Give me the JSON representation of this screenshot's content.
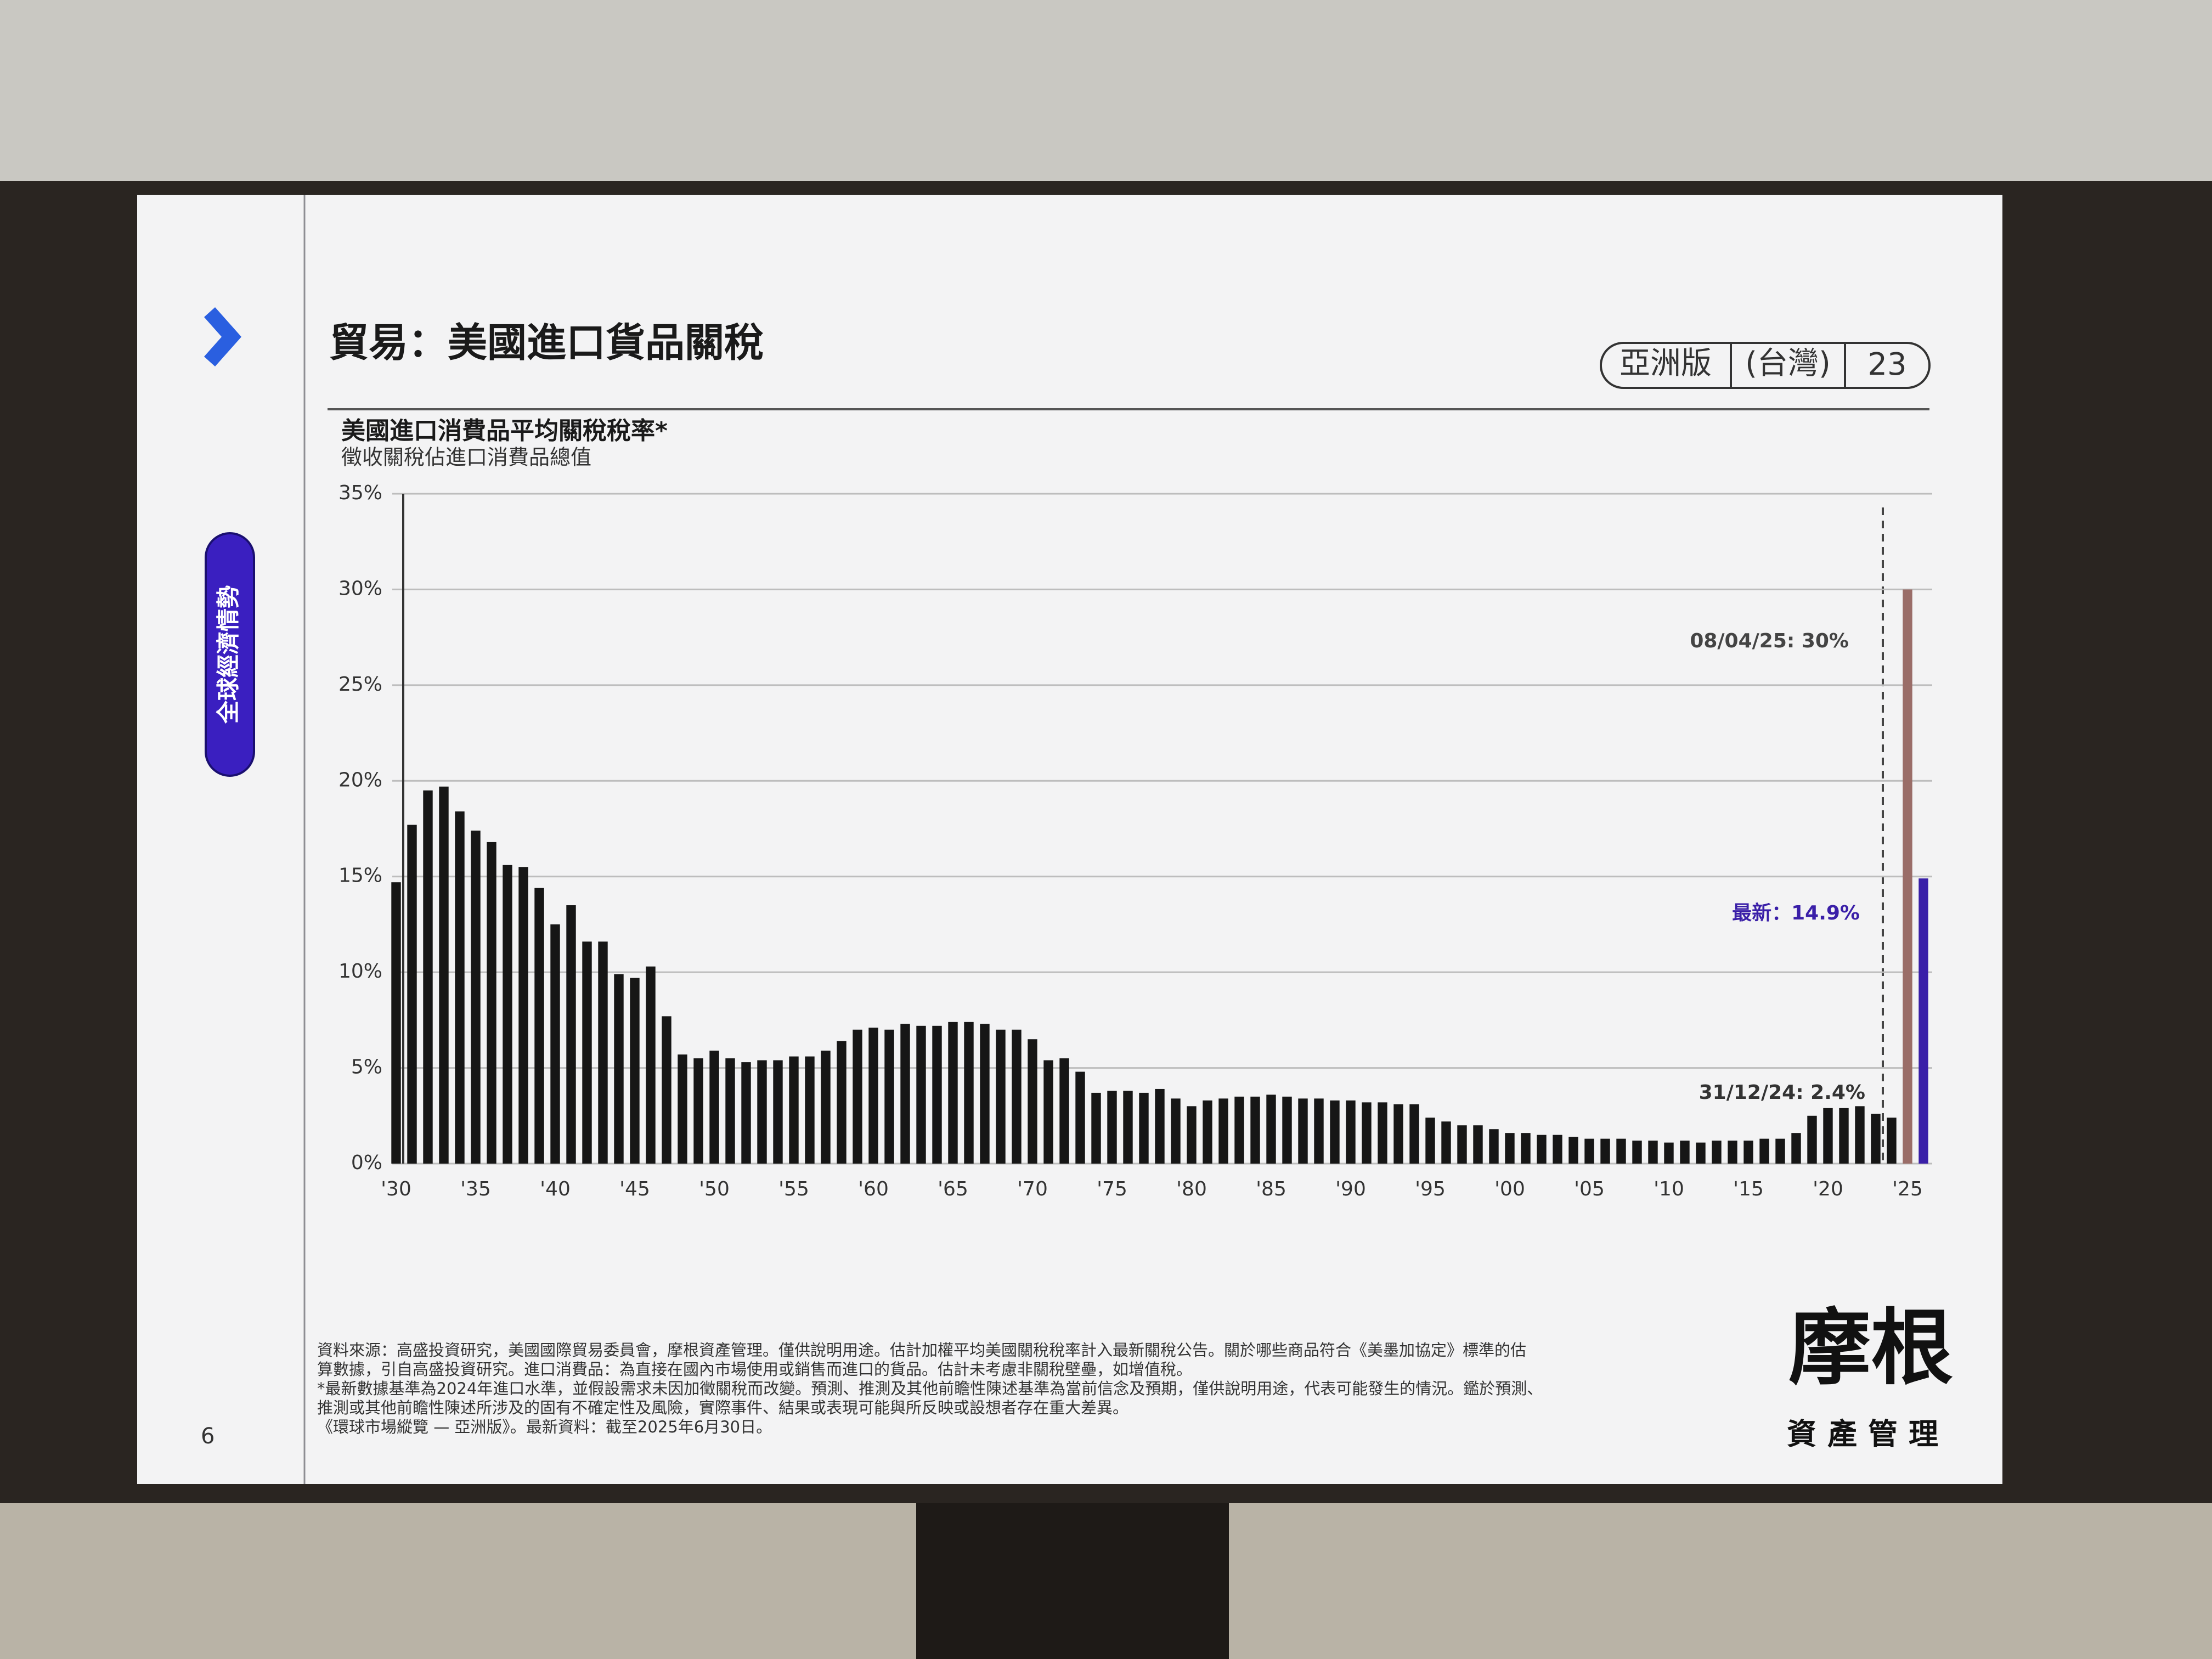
{
  "header": {
    "title": "貿易：美國進口貨品關稅",
    "edition": "亞洲版",
    "region": "(台灣)",
    "page_ref": "23"
  },
  "side_tab": "全球經濟情勢",
  "chart_data": {
    "type": "bar",
    "title": "美國進口消費品平均關稅稅率*",
    "subtitle": "徵收關稅佔進口消費品總值",
    "categories": [
      "'30",
      null,
      null,
      null,
      null,
      "'35",
      null,
      null,
      null,
      null,
      "'40",
      null,
      null,
      null,
      null,
      "'45",
      null,
      null,
      null,
      null,
      "'50",
      null,
      null,
      null,
      null,
      "'55",
      null,
      null,
      null,
      null,
      "'60",
      null,
      null,
      null,
      null,
      "'65",
      null,
      null,
      null,
      null,
      "'70",
      null,
      null,
      null,
      null,
      "'75",
      null,
      null,
      null,
      null,
      "'80",
      null,
      null,
      null,
      null,
      "'85",
      null,
      null,
      null,
      null,
      "'90",
      null,
      null,
      null,
      null,
      "'95",
      null,
      null,
      null,
      null,
      "'00",
      null,
      null,
      null,
      null,
      "'05",
      null,
      null,
      null,
      null,
      "'10",
      null,
      null,
      null,
      null,
      "'15",
      null,
      null,
      null,
      null,
      "'20",
      null,
      null,
      null,
      null,
      "'25",
      null
    ],
    "values": [
      14.7,
      17.7,
      19.5,
      19.7,
      18.4,
      17.4,
      16.8,
      15.6,
      15.5,
      14.4,
      12.5,
      13.5,
      11.6,
      11.6,
      9.9,
      9.7,
      10.3,
      7.7,
      5.7,
      5.5,
      5.9,
      5.5,
      5.3,
      5.4,
      5.4,
      5.6,
      5.6,
      5.9,
      6.4,
      7.0,
      7.1,
      7.0,
      7.3,
      7.2,
      7.2,
      7.4,
      7.4,
      7.3,
      7.0,
      7.0,
      6.5,
      5.4,
      5.5,
      4.8,
      3.7,
      3.8,
      3.8,
      3.7,
      3.9,
      3.4,
      3.0,
      3.3,
      3.4,
      3.5,
      3.5,
      3.6,
      3.5,
      3.4,
      3.4,
      3.3,
      3.3,
      3.2,
      3.2,
      3.1,
      3.1,
      2.4,
      2.2,
      2.0,
      2.0,
      1.8,
      1.6,
      1.6,
      1.5,
      1.5,
      1.4,
      1.3,
      1.3,
      1.3,
      1.2,
      1.2,
      1.1,
      1.2,
      1.1,
      1.2,
      1.2,
      1.2,
      1.3,
      1.3,
      1.6,
      2.5,
      2.9,
      2.9,
      3.0,
      2.6,
      2.4,
      30,
      14.9
    ],
    "colors": [
      "#161616",
      "#161616",
      "#161616",
      "#161616",
      "#161616",
      "#161616",
      "#161616",
      "#161616",
      "#161616",
      "#161616",
      "#161616",
      "#161616",
      "#161616",
      "#161616",
      "#161616",
      "#161616",
      "#161616",
      "#161616",
      "#161616",
      "#161616",
      "#161616",
      "#161616",
      "#161616",
      "#161616",
      "#161616",
      "#161616",
      "#161616",
      "#161616",
      "#161616",
      "#161616",
      "#161616",
      "#161616",
      "#161616",
      "#161616",
      "#161616",
      "#161616",
      "#161616",
      "#161616",
      "#161616",
      "#161616",
      "#161616",
      "#161616",
      "#161616",
      "#161616",
      "#161616",
      "#161616",
      "#161616",
      "#161616",
      "#161616",
      "#161616",
      "#161616",
      "#161616",
      "#161616",
      "#161616",
      "#161616",
      "#161616",
      "#161616",
      "#161616",
      "#161616",
      "#161616",
      "#161616",
      "#161616",
      "#161616",
      "#161616",
      "#161616",
      "#161616",
      "#161616",
      "#161616",
      "#161616",
      "#161616",
      "#161616",
      "#161616",
      "#161616",
      "#161616",
      "#161616",
      "#161616",
      "#161616",
      "#161616",
      "#161616",
      "#161616",
      "#161616",
      "#161616",
      "#161616",
      "#161616",
      "#161616",
      "#161616",
      "#161616",
      "#161616",
      "#161616",
      "#161616",
      "#161616",
      "#161616",
      "#161616",
      "#161616",
      "#161616",
      "#9a6d68",
      "#3a1fa8"
    ],
    "ylim": [
      0,
      35
    ],
    "yticks": [
      {
        "value": 0,
        "label": "0%"
      },
      {
        "value": 5,
        "label": "5%"
      },
      {
        "value": 10,
        "label": "10%"
      },
      {
        "value": 15,
        "label": "15%"
      },
      {
        "value": 20,
        "label": "20%"
      },
      {
        "value": 25,
        "label": "25%"
      },
      {
        "value": 30,
        "label": "30%"
      },
      {
        "value": 35,
        "label": "35%"
      }
    ],
    "grid": true,
    "annotations": [
      "08/04/25: 30%",
      "最新：14.9%",
      "31/12/24: 2.4%"
    ]
  },
  "footnotes": [
    "資料來源：高盛投資研究，美國國際貿易委員會，摩根資產管理。僅供說明用途。估計加權平均美國關稅稅率計入最新關稅公告。關於哪些商品符合《美墨加協定》標準的估",
    "算數據，引自高盛投資研究。進口消費品：為直接在國內市場使用或銷售而進口的貨品。估計未考慮非關稅壁壘，如增值稅。",
    "*最新數據基準為2024年進口水準，並假設需求未因加徵關稅而改變。預測、推測及其他前瞻性陳述基準為當前信念及預期，僅供說明用途，代表可能發生的情況。鑑於預測、",
    "推測或其他前瞻性陳述所涉及的固有不確定性及風險，實際事件、結果或表現可能與所反映或設想者存在重大差異。",
    "《環球市場縱覽 — 亞洲版》。最新資料：截至2025年6月30日。"
  ],
  "page_number": "6",
  "logo": {
    "name": "摩根",
    "subtitle": "資產管理"
  }
}
